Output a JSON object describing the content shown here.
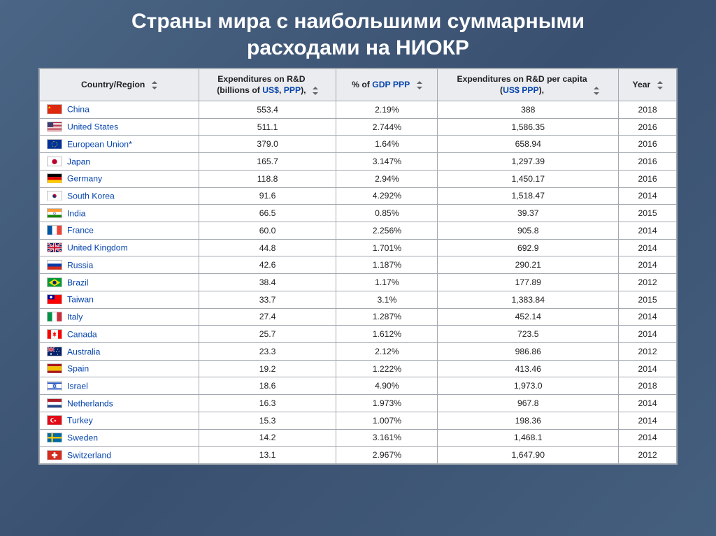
{
  "title_line1": "Страны мира с наибольшими суммарными",
  "title_line2": "расходами на НИОКР",
  "headers": {
    "country": "Country/Region",
    "exp_line1": "Expenditures on R&D",
    "exp_line2a": "(billions of ",
    "exp_line2_link": "US$",
    "exp_line2b": ", ",
    "exp_line2_link2": "PPP",
    "exp_line2c": "),",
    "pct_a": "% of ",
    "pct_link1": "GDP",
    "pct_b": " ",
    "pct_link2": "PPP",
    "percap_line1": "Expenditures on R&D per capita",
    "percap_line2a": "(",
    "percap_link1": "US$",
    "percap_line2b": " ",
    "percap_link2": "PPP",
    "percap_line2c": "),",
    "year": "Year"
  },
  "table": {
    "header_bg": "#eaecf0",
    "border_color": "#a2a9b1",
    "row_bg": "#ffffff",
    "link_color": "#0645ad",
    "text_color": "#202122",
    "font_size": 12.2,
    "columns_width": [
      220,
      190,
      140,
      250,
      80
    ]
  },
  "rows": [
    {
      "name": "China",
      "exp": "553.4",
      "pct": "2.19%",
      "percap": "388",
      "year": "2018",
      "flag": "cn"
    },
    {
      "name": "United States",
      "exp": "511.1",
      "pct": "2.744%",
      "percap": "1,586.35",
      "year": "2016",
      "flag": "us"
    },
    {
      "name": "European Union*",
      "exp": "379.0",
      "pct": "1.64%",
      "percap": "658.94",
      "year": "2016",
      "flag": "eu"
    },
    {
      "name": "Japan",
      "exp": "165.7",
      "pct": "3.147%",
      "percap": "1,297.39",
      "year": "2016",
      "flag": "jp"
    },
    {
      "name": "Germany",
      "exp": "118.8",
      "pct": "2.94%",
      "percap": "1,450.17",
      "year": "2016",
      "flag": "de"
    },
    {
      "name": "South Korea",
      "exp": "91.6",
      "pct": "4.292%",
      "percap": "1,518.47",
      "year": "2014",
      "flag": "kr"
    },
    {
      "name": "India",
      "exp": "66.5",
      "pct": "0.85%",
      "percap": "39.37",
      "year": "2015",
      "flag": "in"
    },
    {
      "name": "France",
      "exp": "60.0",
      "pct": "2.256%",
      "percap": "905.8",
      "year": "2014",
      "flag": "fr"
    },
    {
      "name": "United Kingdom",
      "exp": "44.8",
      "pct": "1.701%",
      "percap": "692.9",
      "year": "2014",
      "flag": "uk"
    },
    {
      "name": "Russia",
      "exp": "42.6",
      "pct": "1.187%",
      "percap": "290.21",
      "year": "2014",
      "flag": "ru"
    },
    {
      "name": "Brazil",
      "exp": "38.4",
      "pct": "1.17%",
      "percap": "177.89",
      "year": "2012",
      "flag": "br"
    },
    {
      "name": "Taiwan",
      "exp": "33.7",
      "pct": "3.1%",
      "percap": "1,383.84",
      "year": "2015",
      "flag": "tw"
    },
    {
      "name": "Italy",
      "exp": "27.4",
      "pct": "1.287%",
      "percap": "452.14",
      "year": "2014",
      "flag": "it"
    },
    {
      "name": "Canada",
      "exp": "25.7",
      "pct": "1.612%",
      "percap": "723.5",
      "year": "2014",
      "flag": "ca"
    },
    {
      "name": "Australia",
      "exp": "23.3",
      "pct": "2.12%",
      "percap": "986.86",
      "year": "2012",
      "flag": "au"
    },
    {
      "name": "Spain",
      "exp": "19.2",
      "pct": "1.222%",
      "percap": "413.46",
      "year": "2014",
      "flag": "es"
    },
    {
      "name": "Israel",
      "exp": "18.6",
      "pct": "4.90%",
      "percap": "1,973.0",
      "year": "2018",
      "flag": "il"
    },
    {
      "name": "Netherlands",
      "exp": "16.3",
      "pct": "1.973%",
      "percap": "967.8",
      "year": "2014",
      "flag": "nl"
    },
    {
      "name": "Turkey",
      "exp": "15.3",
      "pct": "1.007%",
      "percap": "198.36",
      "year": "2014",
      "flag": "tr"
    },
    {
      "name": "Sweden",
      "exp": "14.2",
      "pct": "3.161%",
      "percap": "1,468.1",
      "year": "2014",
      "flag": "se"
    },
    {
      "name": "Switzerland",
      "exp": "13.1",
      "pct": "2.967%",
      "percap": "1,647.90",
      "year": "2012",
      "flag": "ch"
    }
  ],
  "flags": {
    "cn": "<svg viewBox='0 0 22 14'><rect width='22' height='14' fill='#de2910'/><polygon fill='#ffde00' points='3,2 3.6,3.6 5.2,3.6 3.9,4.6 4.5,6.2 3,5.2 1.5,6.2 2.1,4.6 0.8,3.6 2.4,3.6'/></svg>",
    "us": "<svg viewBox='0 0 22 14'><rect width='22' height='14' fill='#b22234'/><rect y='1.08' width='22' height='1.08' fill='#fff'/><rect y='3.23' width='22' height='1.08' fill='#fff'/><rect y='5.38' width='22' height='1.08' fill='#fff'/><rect y='7.54' width='22' height='1.08' fill='#fff'/><rect y='9.69' width='22' height='1.08' fill='#fff'/><rect y='11.85' width='22' height='1.08' fill='#fff'/><rect width='9' height='7.5' fill='#3c3b6e'/></svg>",
    "eu": "<svg viewBox='0 0 22 14'><rect width='22' height='14' fill='#003399'/><circle cx='11' cy='7' r='4.2' fill='none' stroke='#ffcc00' stroke-width='0.9' stroke-dasharray='0.9,1.3'/></svg>",
    "jp": "<svg viewBox='0 0 22 14'><rect width='22' height='14' fill='#fff'/><circle cx='11' cy='7' r='4' fill='#bc002d'/></svg>",
    "de": "<svg viewBox='0 0 22 14'><rect width='22' height='4.67' fill='#000'/><rect y='4.67' width='22' height='4.67' fill='#dd0000'/><rect y='9.33' width='22' height='4.67' fill='#ffce00'/></svg>",
    "kr": "<svg viewBox='0 0 22 14'><rect width='22' height='14' fill='#fff'/><circle cx='11' cy='7' r='3' fill='#c60c30'/><path d='M8 7 A3 3 0 0 0 14 7 A1.5 1.5 0 0 1 11 7 A1.5 1.5 0 0 0 8 7' fill='#003478'/></svg>",
    "in": "<svg viewBox='0 0 22 14'><rect width='22' height='4.67' fill='#ff9933'/><rect y='4.67' width='22' height='4.67' fill='#fff'/><rect y='9.33' width='22' height='4.67' fill='#138808'/><circle cx='11' cy='7' r='1.6' fill='none' stroke='#000080' stroke-width='0.5'/></svg>",
    "fr": "<svg viewBox='0 0 22 14'><rect width='7.33' height='14' fill='#0055a4'/><rect x='7.33' width='7.33' height='14' fill='#fff'/><rect x='14.67' width='7.33' height='14' fill='#ef4135'/></svg>",
    "uk": "<svg viewBox='0 0 22 14'><rect width='22' height='14' fill='#012169'/><path d='M0 0 L22 14 M22 0 L0 14' stroke='#fff' stroke-width='2.8'/><path d='M0 0 L22 14 M22 0 L0 14' stroke='#c8102e' stroke-width='1.2'/><rect x='9' width='4' height='14' fill='#fff'/><rect y='5' width='22' height='4' fill='#fff'/><rect x='9.8' width='2.4' height='14' fill='#c8102e'/><rect y='5.8' width='22' height='2.4' fill='#c8102e'/></svg>",
    "ru": "<svg viewBox='0 0 22 14'><rect width='22' height='4.67' fill='#fff'/><rect y='4.67' width='22' height='4.67' fill='#0039a6'/><rect y='9.33' width='22' height='4.67' fill='#d52b1e'/></svg>",
    "br": "<svg viewBox='0 0 22 14'><rect width='22' height='14' fill='#009b3a'/><polygon points='11,1.5 20,7 11,12.5 2,7' fill='#fedf00'/><circle cx='11' cy='7' r='3' fill='#002776'/></svg>",
    "tw": "<svg viewBox='0 0 22 14'><rect width='22' height='14' fill='#fe0000'/><rect width='11' height='7' fill='#000095'/><circle cx='5.5' cy='3.5' r='2' fill='#fff'/></svg>",
    "it": "<svg viewBox='0 0 22 14'><rect width='7.33' height='14' fill='#009246'/><rect x='7.33' width='7.33' height='14' fill='#fff'/><rect x='14.67' width='7.33' height='14' fill='#ce2b37'/></svg>",
    "ca": "<svg viewBox='0 0 22 14'><rect width='22' height='14' fill='#fff'/><rect width='5.5' height='14' fill='#ff0000'/><rect x='16.5' width='5.5' height='14' fill='#ff0000'/><polygon fill='#ff0000' points='11,2 11.8,5 14,4.5 12.5,7 14,9.5 11.8,9 11,12 10.2,9 8,9.5 9.5,7 8,4.5 10.2,5'/></svg>",
    "au": "<svg viewBox='0 0 22 14'><rect width='22' height='14' fill='#012169'/><path d='M0 0 L11 7 M11 0 L0 7' stroke='#fff' stroke-width='1.4'/><path d='M0 0 L11 7 M11 0 L0 7' stroke='#c8102e' stroke-width='0.6'/><rect x='4.5' width='2' height='7' fill='#fff'/><rect y='2.5' width='11' height='2' fill='#fff'/><rect x='4.9' width='1.2' height='7' fill='#c8102e'/><rect y='2.9' width='11' height='1.2' fill='#c8102e'/><circle cx='5.5' cy='10.5' r='1.3' fill='#fff'/><circle cx='16' cy='3' r='0.7' fill='#fff'/><circle cx='18' cy='6' r='0.7' fill='#fff'/><circle cx='16' cy='11' r='0.7' fill='#fff'/><circle cx='14' cy='7' r='0.7' fill='#fff'/></svg>",
    "es": "<svg viewBox='0 0 22 14'><rect width='22' height='3.5' fill='#aa151b'/><rect y='3.5' width='22' height='7' fill='#f1bf00'/><rect y='10.5' width='22' height='3.5' fill='#aa151b'/></svg>",
    "il": "<svg viewBox='0 0 22 14'><rect width='22' height='14' fill='#fff'/><rect y='1.5' width='22' height='1.8' fill='#0038b8'/><rect y='10.7' width='22' height='1.8' fill='#0038b8'/><path d='M11 4 L13.5 9 L8.5 9 Z M11 10 L8.5 5 L13.5 5 Z' fill='none' stroke='#0038b8' stroke-width='0.7'/></svg>",
    "nl": "<svg viewBox='0 0 22 14'><rect width='22' height='4.67' fill='#ae1c28'/><rect y='4.67' width='22' height='4.67' fill='#fff'/><rect y='9.33' width='22' height='4.67' fill='#21468b'/></svg>",
    "tr": "<svg viewBox='0 0 22 14'><rect width='22' height='14' fill='#e30a17'/><circle cx='8' cy='7' r='3.5' fill='#fff'/><circle cx='9' cy='7' r='2.8' fill='#e30a17'/><polygon fill='#fff' points='12,5.5 12.5,7 14,7.2 12.8,8 13.2,9.5 12,8.6 10.8,9.5 11.2,8 10,7.2 11.5,7'/></svg>",
    "se": "<svg viewBox='0 0 22 14'><rect width='22' height='14' fill='#006aa7'/><rect x='6' width='2.5' height='14' fill='#fecc00'/><rect y='5.75' width='22' height='2.5' fill='#fecc00'/></svg>",
    "ch": "<svg viewBox='0 0 22 14'><rect width='22' height='14' fill='#d52b1e'/><rect x='9.5' y='2.5' width='3' height='9' fill='#fff'/><rect x='6.5' y='5.5' width='9' height='3' fill='#fff'/></svg>"
  }
}
